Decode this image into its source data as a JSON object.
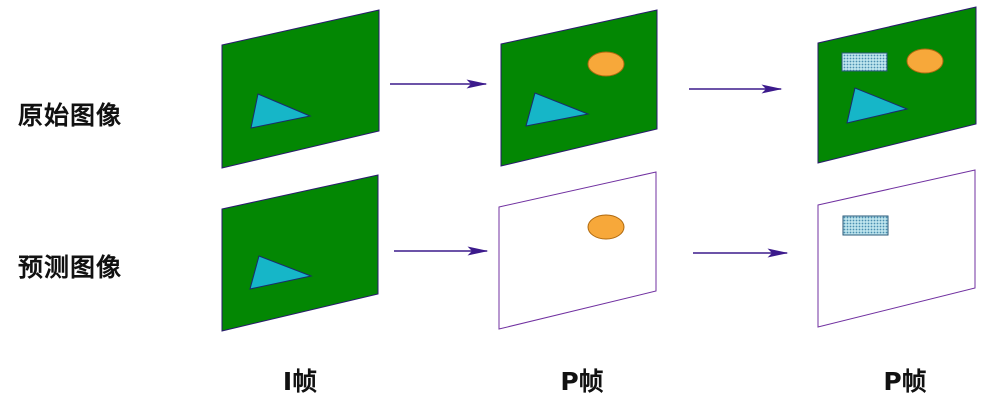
{
  "row_labels": {
    "original": "原始图像",
    "predicted": "预测图像"
  },
  "column_labels": [
    "I帧",
    "P帧",
    "P帧"
  ],
  "colors": {
    "frame_fill": "#038703",
    "frame_stroke": "#2a1a6e",
    "empty_frame_stroke": "#7030a0",
    "arrow": "#3c1a8c",
    "triangle_fill": "#16b6c8",
    "triangle_stroke": "#1a2a6e",
    "ellipse_fill": "#f7a83a",
    "ellipse_stroke": "#b06a10",
    "rect_fill": "#9fd3dd",
    "rect_stroke": "#2a5a7a"
  }
}
